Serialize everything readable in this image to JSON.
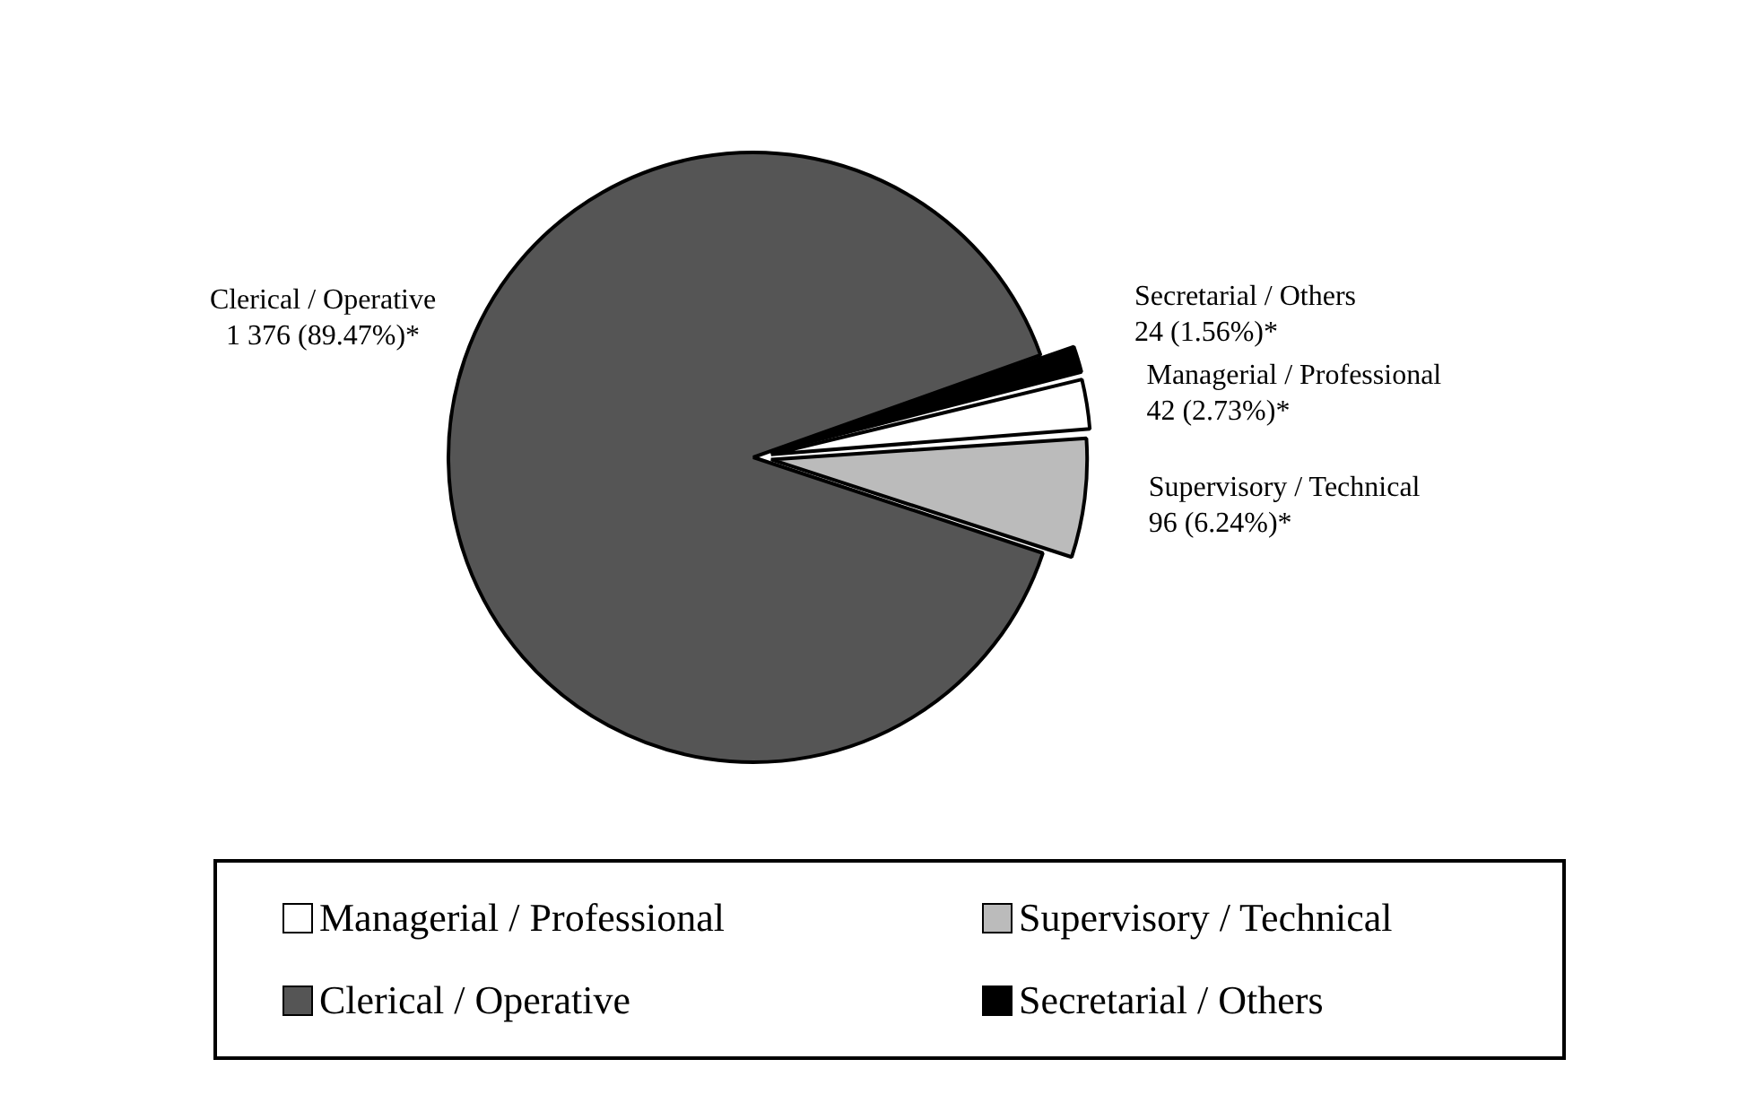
{
  "chart_data": {
    "type": "pie",
    "categories": [
      "Managerial / Professional",
      "Supervisory / Technical",
      "Clerical / Operative",
      "Secretarial / Others"
    ],
    "values": [
      42,
      96,
      1376,
      24
    ],
    "value_labels": [
      "42 (2.73%)*",
      "96 (6.24%)*",
      "1 376 (89.47%)*",
      "24 (1.56%)*"
    ],
    "colors": [
      "#ffffff",
      "#bbbbbb",
      "#555555",
      "#000000"
    ],
    "legend": "bottom"
  }
}
